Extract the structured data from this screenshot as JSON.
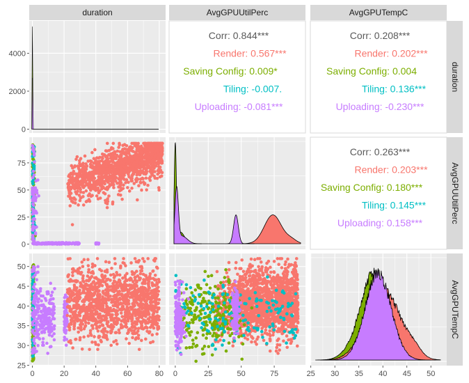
{
  "chart_data": {
    "type": "scatter-matrix",
    "variables": [
      "duration",
      "AvgGPUUtilPerc",
      "AvgGPUTempC"
    ],
    "colors": {
      "Render": "#F8766D",
      "Saving Config": "#7CAE00",
      "Tiling": "#00BFC4",
      "Uploading": "#C77CFF",
      "Corr": "#595959"
    },
    "axes": {
      "duration": {
        "range": [
          -2,
          84
        ],
        "ticks": [
          0,
          20,
          40,
          60,
          80
        ],
        "tick_labels": [
          "0",
          "20",
          "40",
          "60",
          "80"
        ]
      },
      "AvgGPUUtilPerc": {
        "range": [
          -4.7,
          98.7
        ],
        "ticks": [
          0,
          25,
          50,
          75
        ],
        "tick_labels": [
          "0",
          "25",
          "50",
          "75"
        ]
      },
      "AvgGPUTempC": {
        "range": [
          24.9,
          53.3
        ],
        "ticks": [
          25,
          30,
          35,
          40,
          45,
          50
        ],
        "tick_labels": [
          "25",
          "30",
          "35",
          "40",
          "45",
          "50"
        ]
      }
    },
    "density_duration": {
      "ylim": [
        -200,
        5700
      ],
      "ticks": [
        0,
        2000,
        4000
      ],
      "tick_labels": [
        "0",
        "2000",
        "4000"
      ],
      "spike_peak": 5400,
      "second_spike": 2700
    },
    "correlations": [
      {
        "row": 0,
        "col": 1,
        "lines": [
          {
            "label": "Corr",
            "text": "Corr: 0.844***"
          },
          {
            "label": "Render",
            "text": "Render: 0.567***"
          },
          {
            "label": "Saving Config",
            "text": "Saving Config: 0.009*"
          },
          {
            "label": "Tiling",
            "text": "Tiling: -0.007."
          },
          {
            "label": "Uploading",
            "text": "Uploading: -0.081***"
          }
        ]
      },
      {
        "row": 0,
        "col": 2,
        "lines": [
          {
            "label": "Corr",
            "text": "Corr: 0.208***"
          },
          {
            "label": "Render",
            "text": "Render: 0.202***"
          },
          {
            "label": "Saving Config",
            "text": "Saving Config: 0.004"
          },
          {
            "label": "Tiling",
            "text": "Tiling: 0.136***"
          },
          {
            "label": "Uploading",
            "text": "Uploading: -0.230***"
          }
        ]
      },
      {
        "row": 1,
        "col": 2,
        "lines": [
          {
            "label": "Corr",
            "text": "Corr: 0.263***"
          },
          {
            "label": "Render",
            "text": "Render: 0.203***"
          },
          {
            "label": "Saving Config",
            "text": "Saving Config: 0.180***"
          },
          {
            "label": "Tiling",
            "text": "Tiling: 0.145***"
          },
          {
            "label": "Uploading",
            "text": "Uploading: 0.158***"
          }
        ]
      }
    ],
    "density_util": [
      {
        "group": "Saving Config",
        "peak_x": 0,
        "peak_y": 1.0
      },
      {
        "group": "Uploading",
        "peak_x": 1,
        "peak_y": 0.55
      },
      {
        "group": "Uploading",
        "peak_x": 46,
        "peak_y": 0.3
      },
      {
        "group": "Render",
        "peak_x": 74,
        "peak_y": 0.3
      }
    ],
    "density_temp": [
      {
        "group": "Saving Config",
        "mode": 38,
        "peak_y": 0.95
      },
      {
        "group": "Uploading",
        "mode": 39,
        "peak_y": 0.9
      },
      {
        "group": "Render",
        "mode": 40,
        "peak_y": 0.8
      }
    ]
  }
}
